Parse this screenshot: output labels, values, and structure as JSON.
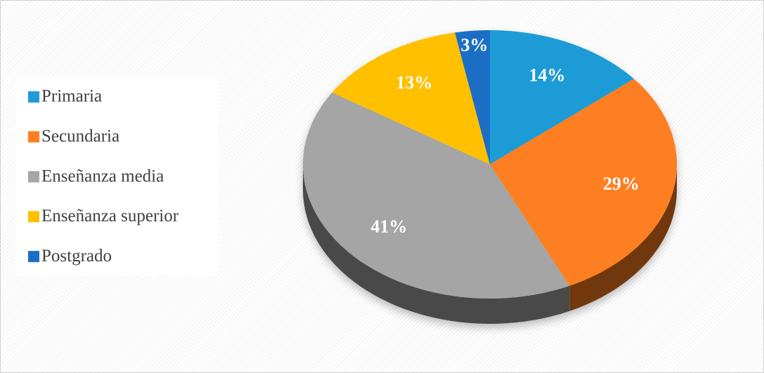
{
  "chart_data": {
    "type": "pie",
    "categories": [
      "Primaria",
      "Secundaria",
      "Enseñanza media",
      "Enseñanza superior",
      "Postgrado"
    ],
    "values": [
      14,
      29,
      41,
      13,
      3
    ],
    "value_labels": [
      "14%",
      "29%",
      "41%",
      "13%",
      "3%"
    ],
    "colors": [
      "#1f9bd7",
      "#fd7f23",
      "#a5a5a5",
      "#ffc000",
      "#1a6ec4"
    ],
    "legend": "left"
  }
}
